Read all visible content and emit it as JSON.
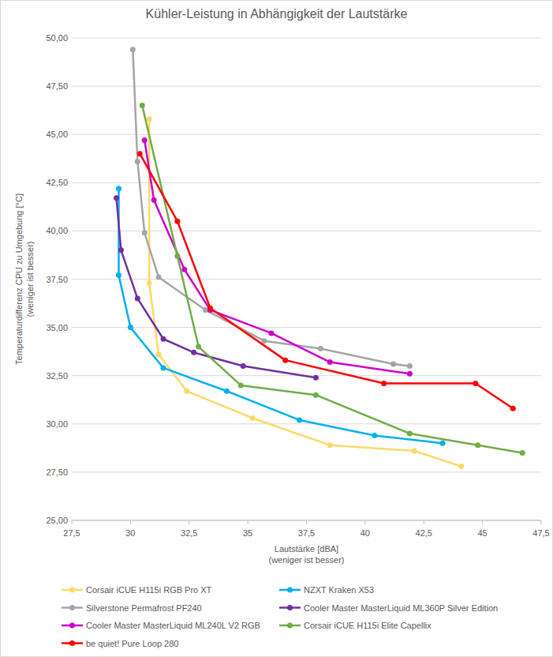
{
  "chart_data": {
    "type": "line",
    "title": "Kühler-Leistung in Abhängigkeit der Lautstärke",
    "x_label": [
      "Lautstärke [dBA]",
      "(weniger ist besser)"
    ],
    "y_label": [
      "Temperaturdifferenz CPU zu Umgebung [°C]",
      "(weniger ist besser)"
    ],
    "xlim": [
      27.5,
      47.5
    ],
    "xticks": [
      {
        "value": 27.5,
        "label": "27,5"
      },
      30,
      {
        "value": 32.5,
        "label": "32,5"
      },
      35,
      {
        "value": 37.5,
        "label": "37,5"
      },
      40,
      {
        "value": 42.5,
        "label": "42,5"
      },
      45,
      {
        "value": 47.5,
        "label": "47,5"
      }
    ],
    "ylim": [
      25,
      50
    ],
    "yticks": [
      {
        "value": 25,
        "label": "25,00"
      },
      {
        "value": 27.5,
        "label": "27,50"
      },
      {
        "value": 30,
        "label": "30,00"
      },
      {
        "value": 32.5,
        "label": "32,50"
      },
      {
        "value": 35,
        "label": "35,00"
      },
      {
        "value": 37.5,
        "label": "37,50"
      },
      {
        "value": 40,
        "label": "40,00"
      },
      {
        "value": 42.5,
        "label": "42,50"
      },
      {
        "value": 45,
        "label": "45,00"
      },
      {
        "value": 47.5,
        "label": "47,50"
      },
      {
        "value": 50,
        "label": "50,00"
      }
    ],
    "grid": true,
    "legend": "bottom",
    "marker": "circle",
    "line_style": "solid",
    "series": [
      {
        "name": "Corsair iCUE H115i RGB Pro XT",
        "color": "#ffd966",
        "x": [
          30.8,
          30.8,
          31.2,
          32.4,
          35.2,
          38.5,
          42.1,
          44.1
        ],
        "values": [
          45.8,
          37.3,
          33.6,
          31.7,
          30.3,
          28.9,
          28.6,
          27.8
        ]
      },
      {
        "name": "NZXT Kraken X53",
        "color": "#00b0f0",
        "x": [
          29.5,
          29.5,
          30.0,
          31.4,
          34.1,
          37.2,
          40.4,
          43.3
        ],
        "values": [
          42.2,
          37.7,
          35.0,
          32.9,
          31.7,
          30.2,
          29.4,
          29.0
        ]
      },
      {
        "name": "Silverstone Permafrost PF240",
        "color": "#a5a5a5",
        "x": [
          30.1,
          30.3,
          30.6,
          31.2,
          33.2,
          35.7,
          38.1,
          41.2,
          41.9
        ],
        "values": [
          49.4,
          43.6,
          39.9,
          37.6,
          35.9,
          34.3,
          33.9,
          33.1,
          33.0
        ]
      },
      {
        "name": "Cooler Master MasterLiquid ML360P Silver Edition",
        "color": "#7030a0",
        "x": [
          29.4,
          29.6,
          30.3,
          31.4,
          32.7,
          34.8,
          37.9
        ],
        "values": [
          41.7,
          39.0,
          36.5,
          34.4,
          33.7,
          33.0,
          32.4
        ]
      },
      {
        "name": "Cooler Master MasterLiquid ML240L V2 RGB",
        "color": "#cc00cc",
        "x": [
          30.6,
          31.0,
          32.3,
          33.4,
          36.0,
          38.5,
          41.9
        ],
        "values": [
          44.7,
          41.6,
          38.0,
          35.9,
          34.7,
          33.2,
          32.6
        ]
      },
      {
        "name": "Corsair iCUE H115i Elite Capellix",
        "color": "#70ad47",
        "x": [
          30.5,
          32.0,
          32.9,
          34.7,
          37.9,
          41.9,
          44.8,
          46.7
        ],
        "values": [
          46.5,
          38.7,
          34.0,
          32.0,
          31.5,
          29.5,
          28.9,
          28.5
        ]
      },
      {
        "name": "be quiet! Pure Loop 280",
        "color": "#ff0000",
        "x": [
          30.4,
          32.0,
          33.4,
          36.6,
          40.8,
          44.7,
          46.3
        ],
        "values": [
          44.0,
          40.5,
          36.0,
          33.3,
          32.1,
          32.1,
          30.8
        ]
      }
    ]
  }
}
